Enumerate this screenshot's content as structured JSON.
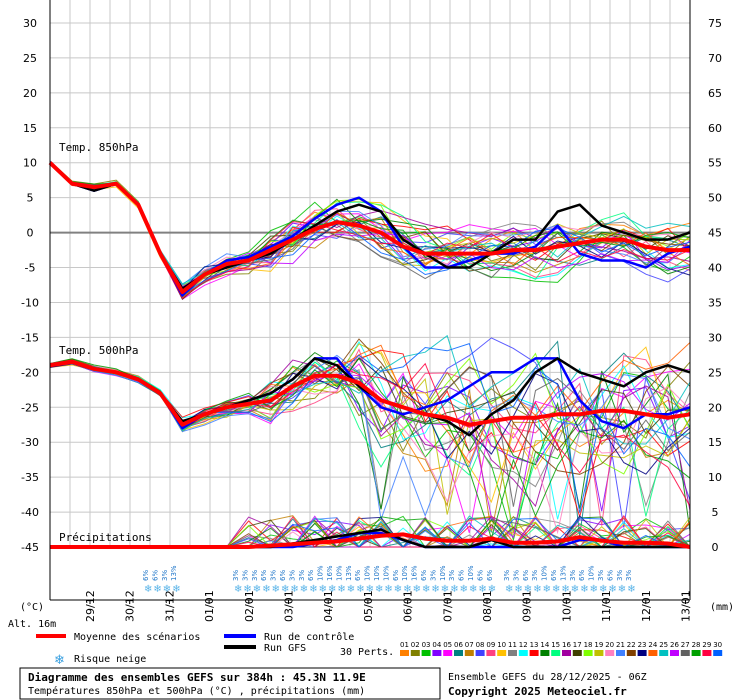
{
  "chart_data": {
    "type": "line",
    "title": "Diagramme des ensembles GEFS sur 384h : 45.3N 11.9E",
    "subtitle": "Températures 850hPa et 500hPa (°C) , précipitations (mm)",
    "run_info": "Ensemble GEFS du 28/12/2025 - 06Z",
    "copyright": "Copyright 2025 Meteociel.fr",
    "altitude": "Alt. 16m",
    "left_unit": "(°C)",
    "right_unit": "(mm)",
    "left_ticks": [
      "30",
      "25",
      "20",
      "15",
      "10",
      "5",
      "0",
      "-5",
      "-10",
      "-15",
      "-20",
      "-25",
      "-30",
      "-35",
      "-40",
      "-45"
    ],
    "right_ticks": [
      "75",
      "70",
      "65",
      "60",
      "55",
      "50",
      "45",
      "40",
      "35",
      "30",
      "25",
      "20",
      "15",
      "10",
      "5",
      "0"
    ],
    "ylim_temp": [
      -45,
      30
    ],
    "x_labels": [
      "29/12",
      "30/12",
      "31/12",
      "01/01",
      "02/01",
      "03/01",
      "04/01",
      "05/01",
      "06/01",
      "07/01",
      "08/01",
      "09/01",
      "10/01",
      "11/01",
      "12/01",
      "13/01"
    ],
    "panel_labels": {
      "t850": "Temp. 850hPa",
      "t500": "Temp. 500hPa",
      "precip": "Précipitations"
    },
    "series": [
      {
        "name": "Moyenne des scénarios",
        "color": "#ff0000",
        "t850": [
          10,
          7,
          6.5,
          7,
          4,
          -3,
          -8.5,
          -6,
          -4.5,
          -4,
          -2.5,
          -1,
          0.5,
          1.5,
          1,
          0,
          -2,
          -3,
          -3,
          -3,
          -3,
          -2.5,
          -2.5,
          -2,
          -1.5,
          -1,
          -1,
          -2,
          -2.5,
          -2.5
        ],
        "t500": [
          -19,
          -18.5,
          -19.5,
          -20,
          -21,
          -23,
          -27.5,
          -26,
          -25,
          -24.5,
          -24,
          -22,
          -20.5,
          -20.5,
          -21.5,
          -24,
          -25,
          -26,
          -26.5,
          -27.5,
          -27,
          -26.5,
          -26.5,
          -26,
          -26,
          -25.5,
          -25.5,
          -26,
          -26.5,
          -26
        ],
        "precip": [
          0,
          0,
          0,
          0,
          0,
          0,
          0,
          0,
          0,
          0,
          0.2,
          0.4,
          0.6,
          0.8,
          1.2,
          1.6,
          1.8,
          1.2,
          0.9,
          0.9,
          1.2,
          0.6,
          0.6,
          0.8,
          1.4,
          0.9,
          0.6,
          0.6,
          0.5,
          0
        ]
      },
      {
        "name": "Run de contrôle",
        "color": "#0000ff",
        "t850": [
          10,
          7,
          6,
          7,
          4,
          -3,
          -9,
          -6,
          -4,
          -3.5,
          -2,
          -0.5,
          2,
          4,
          5,
          3,
          -2,
          -5,
          -5,
          -4,
          -3,
          -3,
          -2,
          1,
          -3,
          -4,
          -4,
          -5,
          -3,
          -2
        ],
        "t500": [
          -19,
          -18.5,
          -19.5,
          -20,
          -21,
          -23,
          -28,
          -26,
          -25,
          -24,
          -23,
          -21,
          -18,
          -18,
          -22,
          -25,
          -26,
          -25,
          -24,
          -22,
          -20,
          -20,
          -18,
          -18,
          -24,
          -27,
          -28,
          -26,
          -26,
          -25
        ],
        "precip": [
          0,
          0,
          0,
          0,
          0,
          0,
          0,
          0,
          0,
          0,
          0,
          0,
          0.5,
          1,
          2,
          2,
          1,
          0,
          0,
          0,
          0,
          0,
          0,
          0,
          1,
          1,
          0,
          0,
          0,
          0
        ]
      },
      {
        "name": "Run GFS",
        "color": "#000000",
        "t850": [
          10,
          7,
          6,
          7,
          4,
          -3,
          -8,
          -6,
          -5,
          -4,
          -3,
          -1,
          1,
          3,
          4,
          3,
          -1,
          -3,
          -5,
          -5,
          -3,
          -1,
          -1,
          3,
          4,
          1,
          0,
          -1,
          -1,
          0
        ],
        "t500": [
          -19,
          -18.5,
          -19.5,
          -20,
          -21,
          -23,
          -27,
          -26,
          -25,
          -24,
          -23,
          -21,
          -18,
          -19,
          -22,
          -24,
          -25,
          -26,
          -27,
          -29,
          -26,
          -24,
          -20,
          -18,
          -20,
          -21,
          -22,
          -20,
          -19,
          -20
        ],
        "precip": [
          0,
          0,
          0,
          0,
          0,
          0,
          0,
          0,
          0,
          0,
          0,
          0.5,
          1,
          1.5,
          2,
          2.5,
          1,
          0,
          0,
          0,
          1,
          0,
          0,
          0,
          0,
          0,
          0,
          0,
          0,
          0
        ]
      }
    ],
    "snow_risk_pct": [
      "6%",
      "6%",
      "3%",
      "13%",
      "3%",
      "3%",
      "3%",
      "6%",
      "3%",
      "6%",
      "3%",
      "3%",
      "6%",
      "10%",
      "16%",
      "10%",
      "13%",
      "6%",
      "10%",
      "10%",
      "10%",
      "6%",
      "10%",
      "16%",
      "6%",
      "3%",
      "10%",
      "3%",
      "6%",
      "10%",
      "6%",
      "6%",
      "3%",
      "3%",
      "6%",
      "3%",
      "10%",
      "6%",
      "13%",
      "3%",
      "6%",
      "10%",
      "3%",
      "6%",
      "3%",
      "3%"
    ],
    "grid": true
  },
  "legend": {
    "mean": "Moyenne des scénarios",
    "control": "Run de contrôle",
    "gfs": "Run GFS",
    "snow": "Risque neige",
    "perts_label": "30 Perts.",
    "perts_numbers": [
      "01",
      "02",
      "03",
      "04",
      "05",
      "06",
      "07",
      "08",
      "09",
      "10",
      "11",
      "12",
      "13",
      "14",
      "15",
      "16",
      "17",
      "18",
      "19",
      "20",
      "21",
      "22",
      "23",
      "24",
      "25",
      "26",
      "27",
      "28",
      "29",
      "30"
    ],
    "perts_colors": [
      "#ff8000",
      "#808000",
      "#00c000",
      "#8000ff",
      "#ff00ff",
      "#008080",
      "#c08000",
      "#4040ff",
      "#ff4080",
      "#ffc000",
      "#808080",
      "#00ffff",
      "#ff0000",
      "#008000",
      "#00ff80",
      "#a000a0",
      "#404000",
      "#80ff00",
      "#c0c000",
      "#ff80c0",
      "#4080ff",
      "#804000",
      "#000080",
      "#ff6000",
      "#00c0c0",
      "#c000ff",
      "#606060",
      "#00a000",
      "#ff0040",
      "#0060ff"
    ]
  }
}
